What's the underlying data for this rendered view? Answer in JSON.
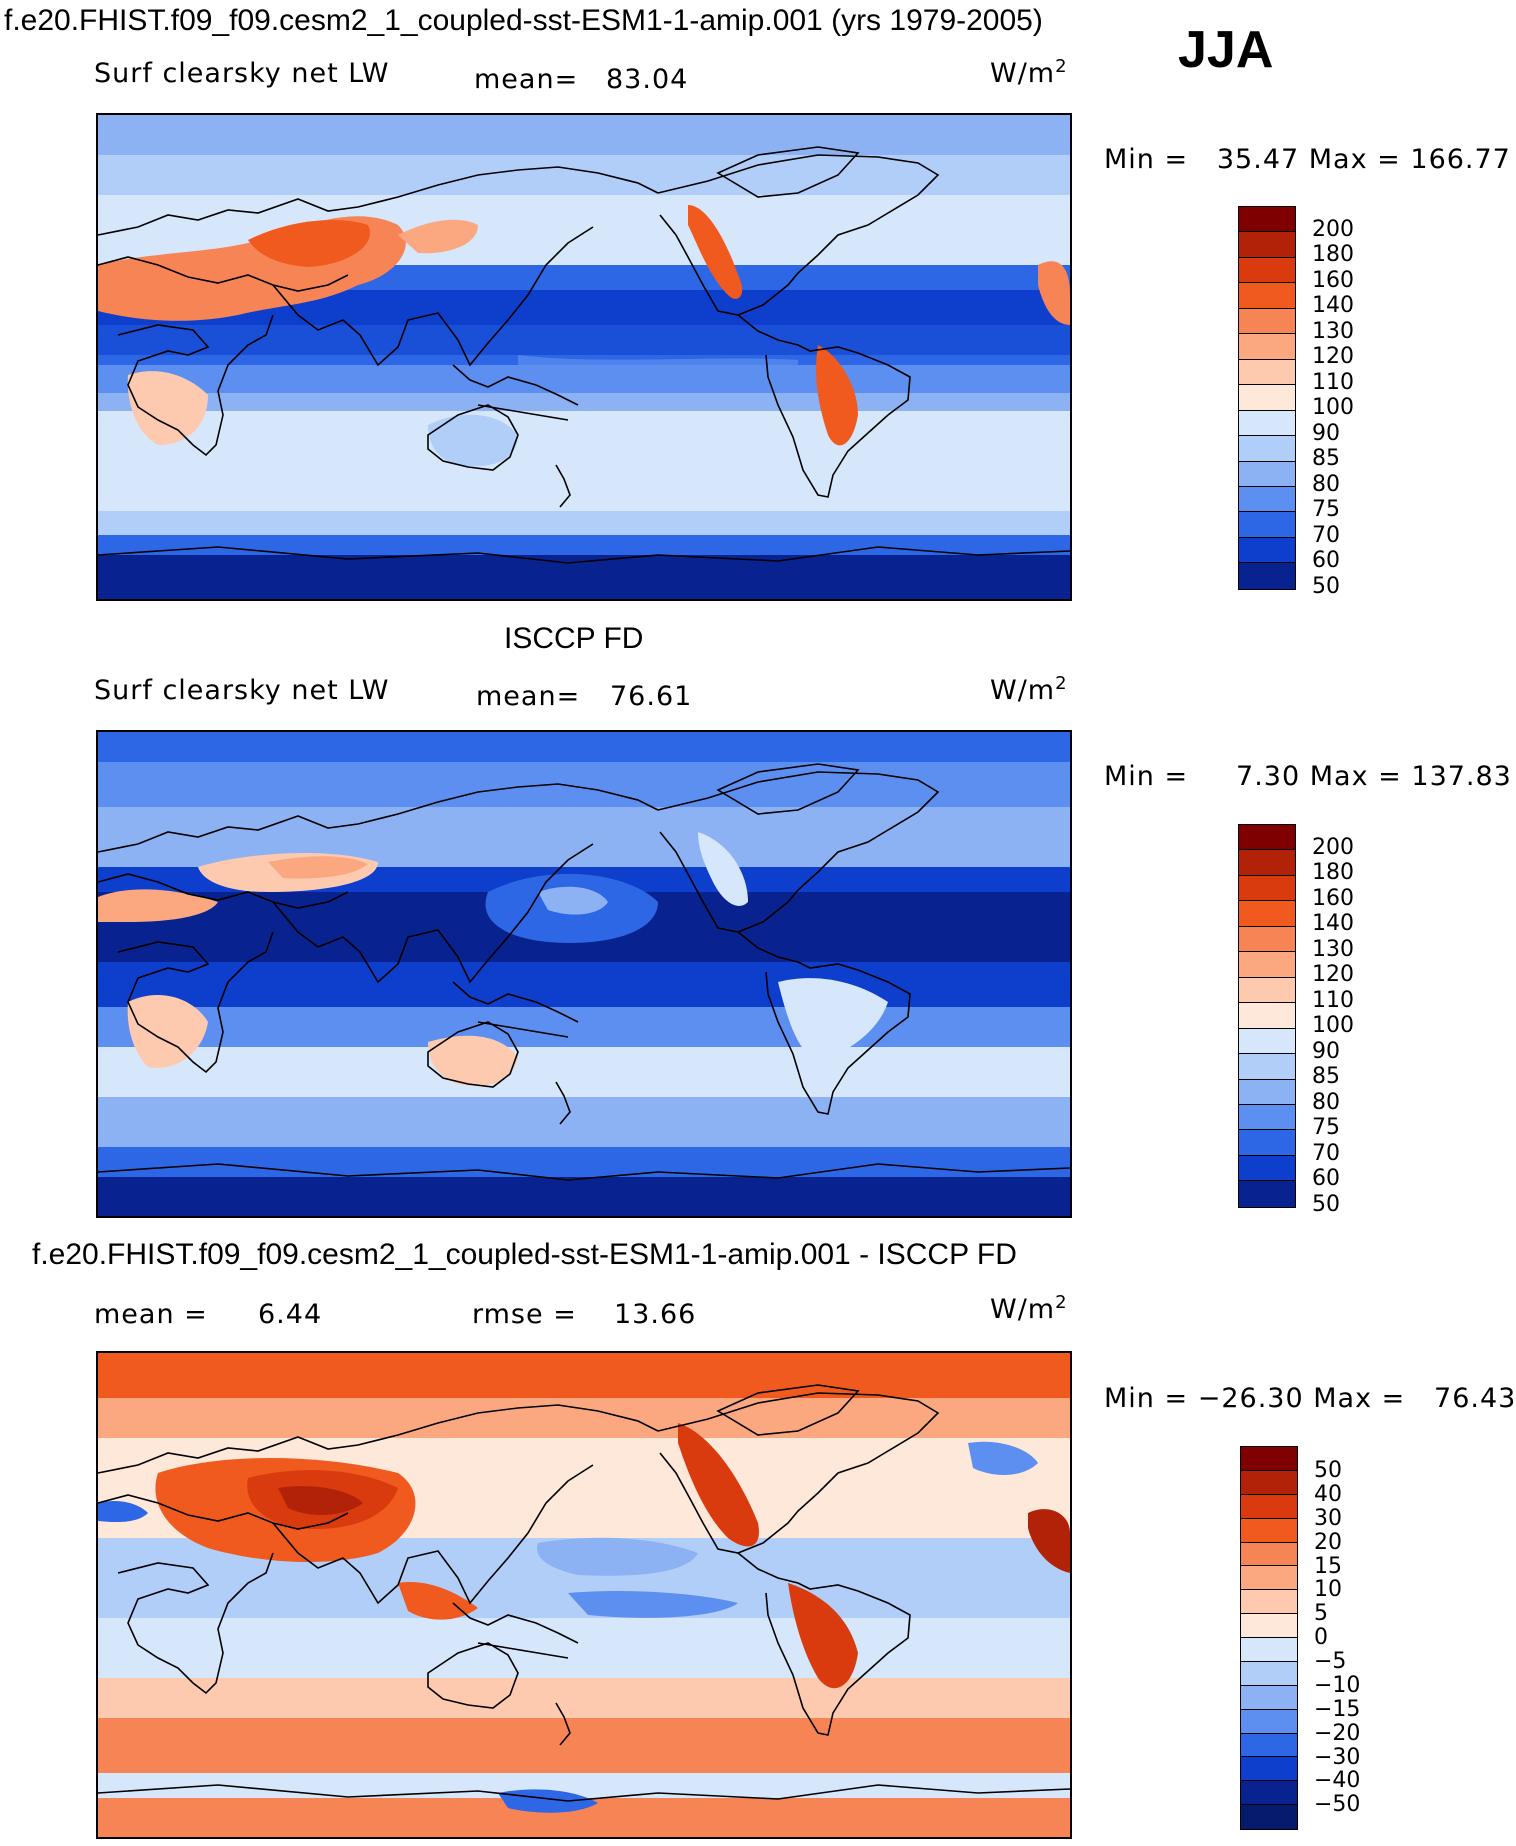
{
  "header": {
    "title": "f.e20.FHIST.f09_f09.cesm2_1_coupled-sst-ESM1-1-amip.001 (yrs 1979-2005)",
    "season": "JJA"
  },
  "chart_data": [
    {
      "type": "heatmap",
      "title": "",
      "variable": "Surf clearsky net LW",
      "mean_label": "mean=",
      "mean": "83.04",
      "units": "W/m",
      "units_exp": "2",
      "min_label": "Min =",
      "min": "35.47",
      "max_label": "Max =",
      "max": "166.77",
      "levels": [
        "200",
        "180",
        "160",
        "140",
        "130",
        "120",
        "110",
        "100",
        "90",
        "85",
        "80",
        "75",
        "70",
        "60",
        "50"
      ],
      "colors": [
        "#7f0000",
        "#b22208",
        "#d93a0e",
        "#f05a1e",
        "#f78455",
        "#fba880",
        "#fdcab0",
        "#fde8da",
        "#d6e6fb",
        "#b1cef8",
        "#8db2f4",
        "#5d8ff0",
        "#2d67e6",
        "#0d3fcc",
        "#08238f"
      ]
    },
    {
      "type": "heatmap",
      "title": "ISCCP FD",
      "variable": "Surf clearsky net LW",
      "mean_label": "mean=",
      "mean": "76.61",
      "units": "W/m",
      "units_exp": "2",
      "min_label": "Min =",
      "min": "7.30",
      "max_label": "Max =",
      "max": "137.83",
      "levels": [
        "200",
        "180",
        "160",
        "140",
        "130",
        "120",
        "110",
        "100",
        "90",
        "85",
        "80",
        "75",
        "70",
        "60",
        "50"
      ],
      "colors": [
        "#7f0000",
        "#b22208",
        "#d93a0e",
        "#f05a1e",
        "#f78455",
        "#fba880",
        "#fdcab0",
        "#fde8da",
        "#d6e6fb",
        "#b1cef8",
        "#8db2f4",
        "#5d8ff0",
        "#2d67e6",
        "#0d3fcc",
        "#08238f"
      ]
    },
    {
      "type": "heatmap",
      "title": "f.e20.FHIST.f09_f09.cesm2_1_coupled-sst-ESM1-1-amip.001 - ISCCP FD",
      "mean_label": "mean =",
      "mean": "6.44",
      "rmse_label": "rmse =",
      "rmse": "13.66",
      "units": "W/m",
      "units_exp": "2",
      "min_label": "Min =",
      "min": "−26.30",
      "max_label": "Max =",
      "max": "76.43",
      "levels": [
        "50",
        "40",
        "30",
        "20",
        "15",
        "10",
        "5",
        "0",
        "−5",
        "−10",
        "−15",
        "−20",
        "−30",
        "−40",
        "−50"
      ],
      "colors": [
        "#7f0000",
        "#b22208",
        "#d93a0e",
        "#f05a1e",
        "#f78455",
        "#fba880",
        "#fdcab0",
        "#fde8da",
        "#d6e6fb",
        "#b1cef8",
        "#8db2f4",
        "#5d8ff0",
        "#2d67e6",
        "#0d3fcc",
        "#08238f",
        "#061a6e"
      ]
    }
  ]
}
